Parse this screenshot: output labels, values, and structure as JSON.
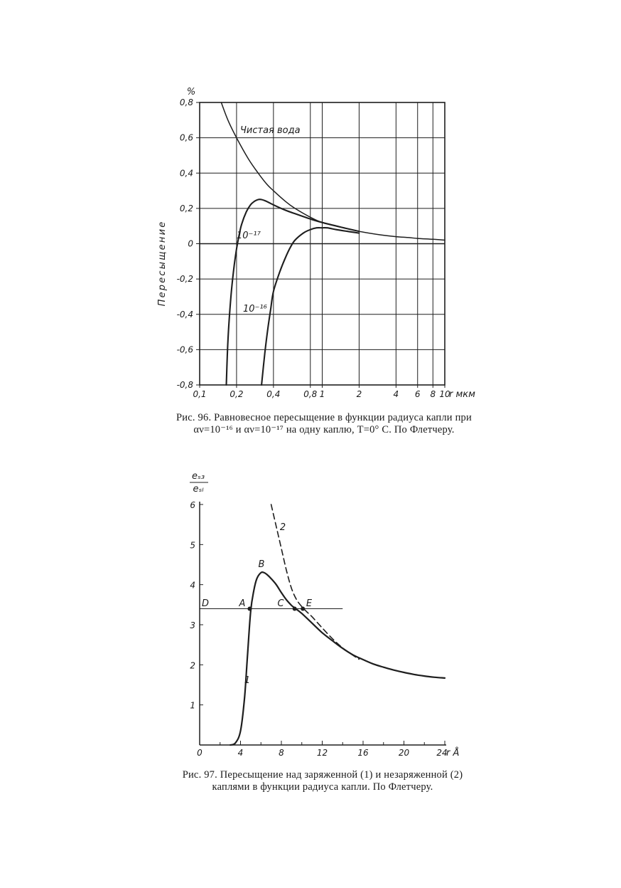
{
  "figures": [
    {
      "caption": "Рис. 96. Равновесное пересыщение в функции радиуса капли при αν=10⁻¹⁶ и αν=10⁻¹⁷ на одну каплю, T=0° C. По Флетчеру.",
      "y_unit": "%",
      "annotations": [
        "Чистая вода",
        "10⁻¹⁷",
        "10⁻¹⁶"
      ]
    },
    {
      "caption": "Рис. 97. Пересыщение над заряженной (1) и незаряженной (2) каплями в функции радиуса капли. По Флетчеру.",
      "point_labels": [
        "B",
        "D",
        "A",
        "C",
        "E"
      ]
    }
  ],
  "chart_data": [
    {
      "type": "line",
      "title": "",
      "xlabel": "r мкм",
      "ylabel": "Пересыщение",
      "xscale": "log",
      "xlim": [
        0.1,
        10
      ],
      "ylim": [
        -0.8,
        0.8
      ],
      "grid": true,
      "x_ticks": [
        0.1,
        0.2,
        0.4,
        0.8,
        1,
        2,
        4,
        6,
        8,
        10
      ],
      "x_tick_labels": [
        "0,1",
        "0,2",
        "0,4",
        "0,8",
        "1",
        "2",
        "4",
        "6",
        "8",
        "10"
      ],
      "y_ticks": [
        0.8,
        0.6,
        0.4,
        0.2,
        0,
        -0.2,
        -0.4,
        -0.6,
        -0.8
      ],
      "y_tick_labels": [
        "0,8",
        "0,6",
        "0,4",
        "0,2",
        "0",
        "-0,2",
        "-0,4",
        "-0,6",
        "-0,8"
      ],
      "series": [
        {
          "name": "Чистая вода",
          "x": [
            0.15,
            0.17,
            0.2,
            0.25,
            0.3,
            0.35,
            0.4,
            0.5,
            0.6,
            0.8,
            1.0,
            1.5,
            2,
            3,
            4,
            5,
            6,
            8,
            10
          ],
          "y": [
            0.8,
            0.7,
            0.6,
            0.48,
            0.4,
            0.34,
            0.3,
            0.24,
            0.2,
            0.15,
            0.12,
            0.09,
            0.07,
            0.05,
            0.04,
            0.035,
            0.03,
            0.025,
            0.02
          ]
        },
        {
          "name": "10⁻¹⁷",
          "x": [
            0.165,
            0.17,
            0.18,
            0.19,
            0.2,
            0.21,
            0.22,
            0.24,
            0.26,
            0.28,
            0.3,
            0.32,
            0.35,
            0.4,
            0.5,
            0.6,
            0.8,
            1.0,
            1.5,
            2
          ],
          "y": [
            -0.8,
            -0.55,
            -0.3,
            -0.14,
            -0.03,
            0.05,
            0.11,
            0.18,
            0.22,
            0.24,
            0.25,
            0.25,
            0.24,
            0.22,
            0.19,
            0.17,
            0.14,
            0.12,
            0.09,
            0.07
          ]
        },
        {
          "name": "10⁻¹⁶",
          "x": [
            0.32,
            0.34,
            0.36,
            0.38,
            0.4,
            0.45,
            0.5,
            0.55,
            0.6,
            0.7,
            0.8,
            0.9,
            1.0,
            1.1,
            1.3,
            1.6,
            2
          ],
          "y": [
            -0.8,
            -0.62,
            -0.48,
            -0.37,
            -0.27,
            -0.16,
            -0.08,
            -0.02,
            0.02,
            0.06,
            0.08,
            0.09,
            0.09,
            0.09,
            0.08,
            0.07,
            0.06
          ]
        }
      ]
    },
    {
      "type": "line",
      "title": "",
      "xlabel": "r Å",
      "ylabel": "eₛ₃ / eₛₗ",
      "xlim": [
        0,
        24
      ],
      "ylim": [
        0,
        6
      ],
      "grid": false,
      "x_ticks": [
        0,
        4,
        8,
        12,
        16,
        20,
        24
      ],
      "x_tick_labels": [
        "0",
        "4",
        "8",
        "12",
        "16",
        "20",
        "24"
      ],
      "y_ticks": [
        1,
        2,
        3,
        4,
        5,
        6
      ],
      "y_tick_labels": [
        "1",
        "2",
        "3",
        "4",
        "5",
        "6"
      ],
      "y_ticks_inside": [
        6
      ],
      "horizontal_line": {
        "y": 3.4,
        "x_from": 0,
        "x_to": 14
      },
      "series": [
        {
          "name": "1",
          "style": "solid",
          "x": [
            3.0,
            3.5,
            4.0,
            4.4,
            4.7,
            5.0,
            5.3,
            5.6,
            6.0,
            6.3,
            6.6,
            7.0,
            7.5,
            8.0,
            8.5,
            9.0,
            9.3,
            10,
            11,
            12,
            13,
            14,
            15,
            16,
            17,
            18,
            19,
            20,
            21,
            22,
            23,
            24
          ],
          "y": [
            0.0,
            0.05,
            0.35,
            1.2,
            2.3,
            3.35,
            3.85,
            4.15,
            4.3,
            4.3,
            4.25,
            4.15,
            4.0,
            3.8,
            3.62,
            3.48,
            3.42,
            3.28,
            3.04,
            2.8,
            2.6,
            2.41,
            2.25,
            2.13,
            2.02,
            1.94,
            1.87,
            1.81,
            1.76,
            1.72,
            1.69,
            1.67
          ]
        },
        {
          "name": "2",
          "style": "dashed",
          "x": [
            7.0,
            7.5,
            8.0,
            8.5,
            9.0,
            9.5,
            10.0,
            10.5,
            11,
            12,
            13,
            14,
            15,
            15.6
          ],
          "y": [
            6.0,
            5.45,
            4.9,
            4.35,
            3.9,
            3.62,
            3.45,
            3.32,
            3.2,
            2.92,
            2.65,
            2.42,
            2.24,
            2.14
          ]
        }
      ],
      "points": [
        {
          "label": "A",
          "x": 4.9,
          "y": 3.4
        },
        {
          "label": "C",
          "x": 9.3,
          "y": 3.4
        },
        {
          "label": "E",
          "x": 10.1,
          "y": 3.4
        }
      ]
    }
  ]
}
